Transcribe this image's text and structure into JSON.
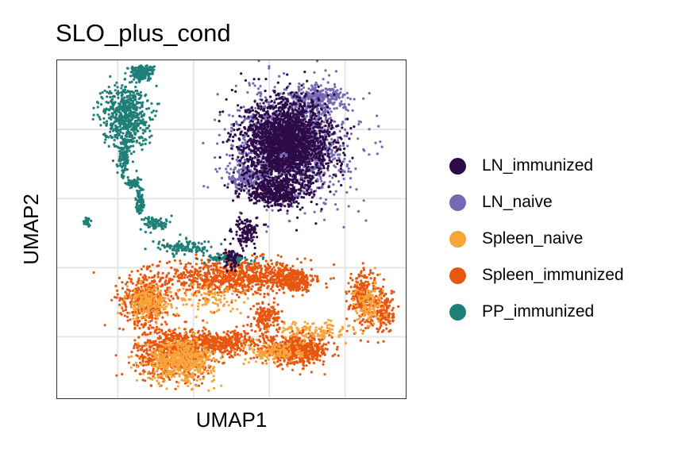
{
  "chart_data": {
    "type": "scatter",
    "title": "SLO_plus_cond",
    "xlabel": "UMAP1",
    "ylabel": "UMAP2",
    "grid": true,
    "axis_tick_labels": false,
    "legend_position": "right",
    "xlim": [
      -10,
      13
    ],
    "ylim": [
      -10,
      12
    ],
    "series": [
      {
        "name": "Spleen_immunized",
        "color": "#E8560F",
        "clusters": [
          {
            "x": 1.5,
            "y": -2.1,
            "sx": 3.0,
            "sy": 0.8,
            "n": 800
          },
          {
            "x": 5.5,
            "y": -2.3,
            "sx": 1.0,
            "sy": 0.5,
            "n": 300
          },
          {
            "x": -4.2,
            "y": -3.5,
            "sx": 1.1,
            "sy": 1.1,
            "n": 400
          },
          {
            "x": -2.3,
            "y": -7.0,
            "sx": 1.7,
            "sy": 1.1,
            "n": 750
          },
          {
            "x": 0.8,
            "y": -6.4,
            "sx": 2.0,
            "sy": 0.5,
            "n": 400
          },
          {
            "x": 5.8,
            "y": -6.9,
            "sx": 1.5,
            "sy": 0.6,
            "n": 550
          },
          {
            "x": 3.8,
            "y": -4.8,
            "sx": 0.6,
            "sy": 0.7,
            "n": 150
          },
          {
            "x": 10.2,
            "y": -3.4,
            "sx": 0.6,
            "sy": 1.2,
            "n": 250
          },
          {
            "x": 11.6,
            "y": -4.3,
            "sx": 0.4,
            "sy": 1.0,
            "n": 150
          }
        ]
      },
      {
        "name": "Spleen_naive",
        "color": "#F7A43B",
        "clusters": [
          {
            "x": -4.0,
            "y": -3.8,
            "sx": 1.0,
            "sy": 0.7,
            "n": 200
          },
          {
            "x": -1.8,
            "y": -7.5,
            "sx": 1.5,
            "sy": 0.9,
            "n": 500
          },
          {
            "x": 6.8,
            "y": -5.6,
            "sx": 1.5,
            "sy": 0.4,
            "n": 120
          },
          {
            "x": 10.6,
            "y": -4.0,
            "sx": 0.7,
            "sy": 1.0,
            "n": 120
          },
          {
            "x": 0.0,
            "y": -3.4,
            "sx": 1.5,
            "sy": 0.8,
            "n": 100
          },
          {
            "x": 4.5,
            "y": -7.0,
            "sx": 1.2,
            "sy": 0.5,
            "n": 150
          }
        ]
      },
      {
        "name": "PP_immunized",
        "color": "#1F7F78",
        "clusters": [
          {
            "x": -5.5,
            "y": 8.4,
            "sx": 1.0,
            "sy": 1.4,
            "n": 600
          },
          {
            "x": -4.4,
            "y": 11.2,
            "sx": 0.5,
            "sy": 0.3,
            "n": 200
          },
          {
            "x": -5.6,
            "y": 5.6,
            "sx": 0.2,
            "sy": 0.8,
            "n": 100
          },
          {
            "x": -5.0,
            "y": 4.0,
            "sx": 0.3,
            "sy": 0.2,
            "n": 60
          },
          {
            "x": -4.5,
            "y": 2.8,
            "sx": 0.2,
            "sy": 0.7,
            "n": 80
          },
          {
            "x": -3.5,
            "y": 1.4,
            "sx": 0.6,
            "sy": 0.3,
            "n": 80
          },
          {
            "x": -1.5,
            "y": -0.2,
            "sx": 1.2,
            "sy": 0.3,
            "n": 120
          },
          {
            "x": 1.2,
            "y": -0.9,
            "sx": 1.0,
            "sy": 0.2,
            "n": 80
          },
          {
            "x": -8.0,
            "y": 1.5,
            "sx": 0.2,
            "sy": 0.2,
            "n": 25
          }
        ]
      },
      {
        "name": "LN_naive",
        "color": "#7569B4",
        "clusters": [
          {
            "x": 5.5,
            "y": 6.5,
            "sx": 2.4,
            "sy": 2.3,
            "n": 1500
          },
          {
            "x": 7.2,
            "y": 9.5,
            "sx": 1.2,
            "sy": 0.6,
            "n": 250
          },
          {
            "x": 2.5,
            "y": 4.4,
            "sx": 1.0,
            "sy": 0.5,
            "n": 150
          }
        ]
      },
      {
        "name": "LN_immunized",
        "color": "#2D0B47",
        "clusters": [
          {
            "x": 5.2,
            "y": 6.6,
            "sx": 1.9,
            "sy": 1.9,
            "n": 2200
          },
          {
            "x": 4.3,
            "y": 3.4,
            "sx": 1.4,
            "sy": 0.6,
            "n": 400
          },
          {
            "x": 2.5,
            "y": 0.8,
            "sx": 0.6,
            "sy": 0.6,
            "n": 120
          },
          {
            "x": 1.5,
            "y": -0.9,
            "sx": 0.3,
            "sy": 0.5,
            "n": 60
          }
        ]
      }
    ]
  },
  "legend": {
    "items": [
      {
        "label": "LN_immunized",
        "color": "#2D0B47"
      },
      {
        "label": "LN_naive",
        "color": "#7569B4"
      },
      {
        "label": "Spleen_naive",
        "color": "#F7A43B"
      },
      {
        "label": "Spleen_immunized",
        "color": "#E8560F"
      },
      {
        "label": "PP_immunized",
        "color": "#1F7F78"
      }
    ]
  }
}
